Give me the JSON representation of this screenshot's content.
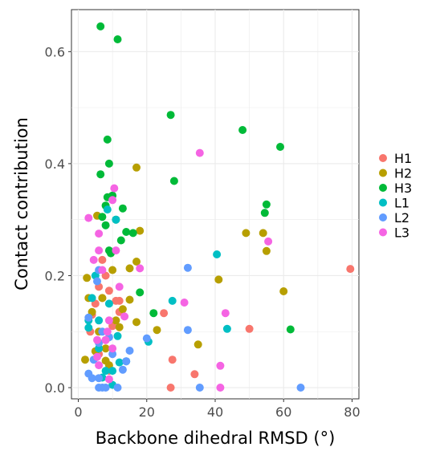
{
  "chart_data": {
    "type": "scatter",
    "title": "",
    "xlabel": "Backbone dihedral RMSD (°)",
    "ylabel": "Contact contribution",
    "xlim": [
      -2,
      82
    ],
    "ylim": [
      -0.02,
      0.675
    ],
    "xticks": [
      "0",
      "20",
      "40",
      "60",
      "80"
    ],
    "xtick_values": [
      0,
      20,
      40,
      60,
      80
    ],
    "yticks": [
      "0.0",
      "0.2",
      "0.4",
      "0.6"
    ],
    "ytick_values": [
      0.0,
      0.2,
      0.4,
      0.6
    ],
    "grid": true,
    "legend_position": "right",
    "series": [
      {
        "name": "H1",
        "color": "#F8766D",
        "points": [
          [
            79.5,
            0.212
          ],
          [
            50,
            0.105
          ],
          [
            25,
            0.133
          ],
          [
            27.5,
            0.05
          ],
          [
            34,
            0.024
          ],
          [
            27,
            0.0
          ],
          [
            7,
            0.228
          ],
          [
            9,
            0.173
          ],
          [
            12,
            0.155
          ],
          [
            6,
            0.18
          ],
          [
            8,
            0.2
          ],
          [
            4,
            0.13
          ],
          [
            5,
            0.15
          ],
          [
            8,
            0.085
          ],
          [
            10,
            0.11
          ],
          [
            12,
            0.135
          ],
          [
            6,
            0.06
          ],
          [
            9,
            0.03
          ],
          [
            11,
            0.155
          ],
          [
            3.5,
            0.1
          ],
          [
            7,
            0.16
          ]
        ]
      },
      {
        "name": "H2",
        "color": "#B79F00",
        "points": [
          [
            17,
            0.393
          ],
          [
            49,
            0.276
          ],
          [
            54,
            0.276
          ],
          [
            55,
            0.244
          ],
          [
            60,
            0.172
          ],
          [
            41,
            0.193
          ],
          [
            35,
            0.077
          ],
          [
            23,
            0.103
          ],
          [
            17,
            0.225
          ],
          [
            15,
            0.213
          ],
          [
            18,
            0.28
          ],
          [
            12,
            0.108
          ],
          [
            15,
            0.157
          ],
          [
            5.5,
            0.307
          ],
          [
            2.5,
            0.196
          ],
          [
            3,
            0.16
          ],
          [
            5,
            0.065
          ],
          [
            8,
            0.048
          ],
          [
            9,
            0.04
          ],
          [
            2,
            0.05
          ],
          [
            6,
            0.1
          ],
          [
            4,
            0.135
          ],
          [
            10,
            0.21
          ],
          [
            13,
            0.14
          ],
          [
            7,
            0.16
          ],
          [
            8,
            0.07
          ],
          [
            11,
            0.12
          ],
          [
            17,
            0.117
          ]
        ]
      },
      {
        "name": "H3",
        "color": "#00BA38",
        "points": [
          [
            6.5,
            0.645
          ],
          [
            11.5,
            0.622
          ],
          [
            27,
            0.487
          ],
          [
            48,
            0.46
          ],
          [
            59,
            0.43
          ],
          [
            8.5,
            0.443
          ],
          [
            9,
            0.4
          ],
          [
            6.5,
            0.381
          ],
          [
            28,
            0.369
          ],
          [
            55,
            0.327
          ],
          [
            54.5,
            0.312
          ],
          [
            62,
            0.104
          ],
          [
            10,
            0.343
          ],
          [
            8.5,
            0.34
          ],
          [
            8,
            0.325
          ],
          [
            13,
            0.32
          ],
          [
            7,
            0.305
          ],
          [
            11,
            0.3
          ],
          [
            8,
            0.29
          ],
          [
            14,
            0.278
          ],
          [
            16,
            0.276
          ],
          [
            12.5,
            0.263
          ],
          [
            9,
            0.245
          ],
          [
            9.5,
            0.24
          ],
          [
            18,
            0.17
          ],
          [
            22,
            0.133
          ]
        ]
      },
      {
        "name": "L1",
        "color": "#00BFC4",
        "points": [
          [
            8.5,
            0.318
          ],
          [
            11,
            0.3
          ],
          [
            40.5,
            0.238
          ],
          [
            27.5,
            0.155
          ],
          [
            43.5,
            0.105
          ],
          [
            20.5,
            0.082
          ],
          [
            14,
            0.047
          ],
          [
            11.5,
            0.092
          ],
          [
            12,
            0.045
          ],
          [
            10,
            0.03
          ],
          [
            8,
            0.03
          ],
          [
            7,
            0.018
          ],
          [
            4,
            0.16
          ],
          [
            3,
            0.107
          ],
          [
            6,
            0.07
          ],
          [
            5,
            0.2
          ],
          [
            9,
            0.15
          ],
          [
            6,
            0.12
          ],
          [
            10,
            0.005
          ],
          [
            3,
            0.12
          ]
        ]
      },
      {
        "name": "L2",
        "color": "#619CFF",
        "points": [
          [
            32,
            0.214
          ],
          [
            65,
            0.0
          ],
          [
            35.5,
            0.0
          ],
          [
            32,
            0.103
          ],
          [
            20,
            0.088
          ],
          [
            15,
            0.066
          ],
          [
            14,
            0.047
          ],
          [
            13,
            0.032
          ],
          [
            3,
            0.125
          ],
          [
            3,
            0.025
          ],
          [
            4,
            0.017
          ],
          [
            6,
            0.017
          ],
          [
            6,
            0.0
          ],
          [
            7,
            0.0
          ],
          [
            11.5,
            0.0
          ],
          [
            8,
            0.0
          ],
          [
            5.5,
            0.19
          ],
          [
            6,
            0.21
          ],
          [
            7,
            0.1
          ],
          [
            4.5,
            0.05
          ],
          [
            9,
            0.09
          ],
          [
            6,
            0.08
          ],
          [
            10,
            0.06
          ]
        ]
      },
      {
        "name": "L3",
        "color": "#F564E3",
        "points": [
          [
            35.5,
            0.419
          ],
          [
            55.5,
            0.261
          ],
          [
            43,
            0.133
          ],
          [
            31,
            0.152
          ],
          [
            41.5,
            0.039
          ],
          [
            41.5,
            0.0
          ],
          [
            10.5,
            0.356
          ],
          [
            10,
            0.335
          ],
          [
            3,
            0.303
          ],
          [
            6,
            0.275
          ],
          [
            6,
            0.245
          ],
          [
            4.5,
            0.228
          ],
          [
            11,
            0.245
          ],
          [
            18,
            0.213
          ],
          [
            12,
            0.18
          ],
          [
            13.5,
            0.127
          ],
          [
            8.5,
            0.1
          ],
          [
            8,
            0.085
          ],
          [
            5.5,
            0.085
          ],
          [
            5.5,
            0.055
          ],
          [
            9,
            0.015
          ],
          [
            7,
            0.21
          ],
          [
            9,
            0.12
          ],
          [
            10,
            0.07
          ],
          [
            6,
            0.04
          ]
        ]
      }
    ]
  }
}
